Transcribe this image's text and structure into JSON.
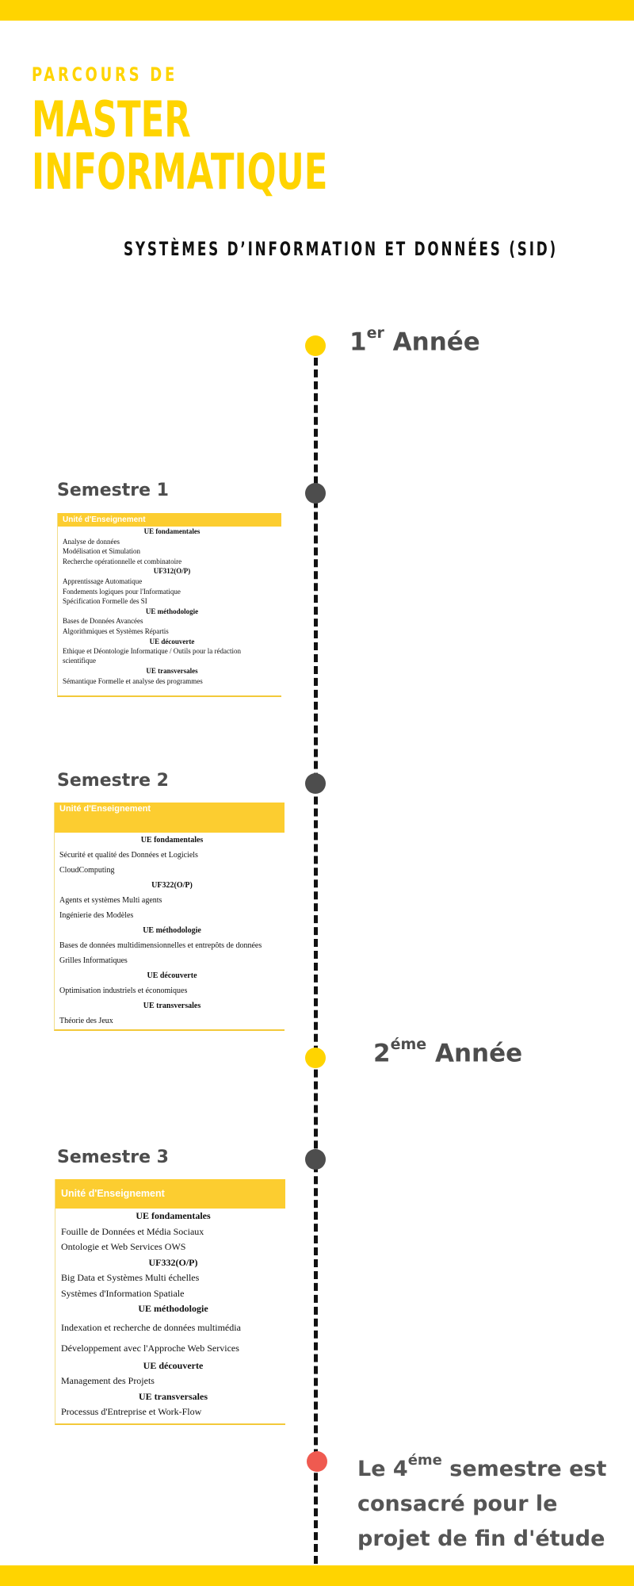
{
  "header": {
    "line1": "PARCOURS DE",
    "line2": "MASTER",
    "line3": "INFORMATIQUE",
    "subtitle": "SYSTÈMES D’INFORMATION ET DONNÉES (SID)"
  },
  "colors": {
    "brand_yellow": "#ffd400",
    "card_header": "#fccd30",
    "dot_grey": "#4d4d4d",
    "dot_red": "#ef5a50"
  },
  "years": {
    "year1": {
      "num": "1",
      "sup": "er",
      "label": "Année"
    },
    "year2": {
      "num": "2",
      "sup": "éme",
      "label": "Année"
    }
  },
  "semesters": {
    "s1": {
      "title": "Semestre 1",
      "header": "Unité d'Enseignement",
      "rows": [
        {
          "type": "cat",
          "text": "UE fondamentales"
        },
        {
          "type": "item",
          "text": "Analyse de données"
        },
        {
          "type": "item",
          "text": "Modélisation et Simulation"
        },
        {
          "type": "item",
          "text": "Recherche opérationnelle et combinatoire"
        },
        {
          "type": "cat",
          "text": "UF312(O/P)"
        },
        {
          "type": "item",
          "text": "Apprentissage Automatique"
        },
        {
          "type": "item",
          "text": "Fondements logiques pour l'Informatique"
        },
        {
          "type": "item",
          "text": "Spécification Formelle des SI"
        },
        {
          "type": "cat",
          "text": "UE méthodologie"
        },
        {
          "type": "item",
          "text": "Bases de Données Avancées"
        },
        {
          "type": "item",
          "text": "Algorithmiques et Systèmes Répartis"
        },
        {
          "type": "cat",
          "text": "UE découverte"
        },
        {
          "type": "item",
          "text": "Ethique et Déontologie Informatique / Outils pour la rédaction scientifique"
        },
        {
          "type": "cat",
          "text": "UE transversales"
        },
        {
          "type": "item",
          "text": "Sémantique Formelle et analyse des programmes"
        }
      ]
    },
    "s2": {
      "title": "Semestre 2",
      "header": "Unité d'Enseignement",
      "rows": [
        {
          "type": "cat",
          "text": "UE fondamentales"
        },
        {
          "type": "item",
          "text": "Sécurité et qualité des Données et Logiciels"
        },
        {
          "type": "item",
          "text": "CloudComputing"
        },
        {
          "type": "cat",
          "text": "UF322(O/P)"
        },
        {
          "type": "item",
          "text": "Agents et systèmes Multi agents"
        },
        {
          "type": "item",
          "text": "Ingénierie des Modèles"
        },
        {
          "type": "cat",
          "text": "UE méthodologie"
        },
        {
          "type": "item",
          "text": "Bases de données multidimensionnelles et entrepôts de données"
        },
        {
          "type": "item",
          "text": "Grilles Informatiques"
        },
        {
          "type": "cat",
          "text": "UE découverte"
        },
        {
          "type": "item",
          "text": "Optimisation industriels et économiques"
        },
        {
          "type": "cat",
          "text": "UE transversales"
        },
        {
          "type": "item",
          "text": "Théorie des Jeux"
        }
      ]
    },
    "s3": {
      "title": "Semestre 3",
      "header": "Unité d'Enseignement",
      "rows": [
        {
          "type": "cat",
          "text": "UE fondamentales"
        },
        {
          "type": "item",
          "text": "Fouille de Données et Média Sociaux"
        },
        {
          "type": "item",
          "text": "Ontologie et Web Services OWS"
        },
        {
          "type": "cat",
          "text": "UF332(O/P)"
        },
        {
          "type": "item",
          "text": "Big Data et Systèmes Multi échelles"
        },
        {
          "type": "item",
          "text": "Systèmes d'Information Spatiale"
        },
        {
          "type": "cat",
          "text": "UE méthodologie"
        },
        {
          "type": "item gap",
          "text": "Indexation et recherche de données multimédia"
        },
        {
          "type": "item gap",
          "text": "Développement avec l'Approche Web Services"
        },
        {
          "type": "cat",
          "text": "UE découverte"
        },
        {
          "type": "item",
          "text": "Management des Projets"
        },
        {
          "type": "cat",
          "text": "UE transversales"
        },
        {
          "type": "item",
          "text": "Processus d'Entreprise et Work-Flow"
        }
      ]
    }
  },
  "final": {
    "prefix": "Le 4",
    "sup": "éme",
    "rest": " semestre est consacré pour le projet de fin d'étude"
  }
}
